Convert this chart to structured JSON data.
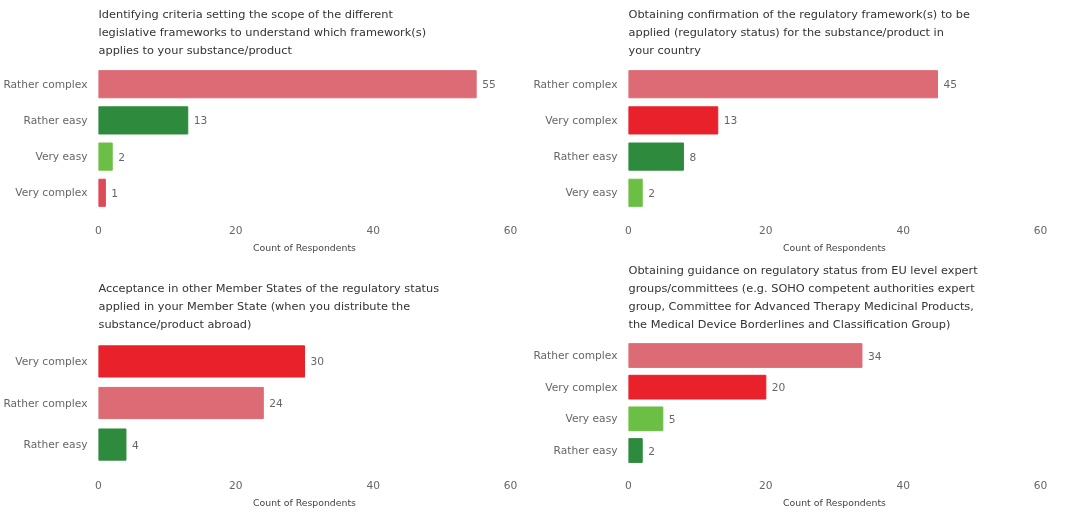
{
  "chart_data": [
    {
      "type": "bar",
      "orientation": "horizontal",
      "title": "Identifying criteria setting the scope of the different legislative frameworks to understand which framework(s) applies to your substance/product",
      "xlabel": "Count of Respondents",
      "categories": [
        "Rather complex",
        "Rather easy",
        "Very easy",
        "Very complex"
      ],
      "values": [
        55,
        13,
        2,
        1
      ],
      "colors": [
        "#dd6b75",
        "#2e8b3e",
        "#6cbf45",
        "#dd4a57"
      ],
      "xlim": [
        0,
        60
      ],
      "xticks": [
        0,
        20,
        40,
        60
      ],
      "data_labels": true
    },
    {
      "type": "bar",
      "orientation": "horizontal",
      "title": "Obtaining confirmation of the regulatory framework(s) to be applied (regulatory status) for the substance/product in your country",
      "xlabel": "Count of Respondents",
      "categories": [
        "Rather complex",
        "Very complex",
        "Rather easy",
        "Very easy"
      ],
      "values": [
        45,
        13,
        8,
        2
      ],
      "colors": [
        "#dd6b75",
        "#e8212a",
        "#2e8b3e",
        "#6cbf45"
      ],
      "xlim": [
        0,
        60
      ],
      "xticks": [
        0,
        20,
        40,
        60
      ],
      "data_labels": true
    },
    {
      "type": "bar",
      "orientation": "horizontal",
      "title": "Acceptance in other Member States of the regulatory status applied in your Member State (when you distribute the substance/product abroad)",
      "xlabel": "Count of Respondents",
      "categories": [
        "Very complex",
        "Rather complex",
        "Rather easy"
      ],
      "values": [
        30,
        24,
        4
      ],
      "colors": [
        "#e8212a",
        "#dd6b75",
        "#2e8b3e"
      ],
      "xlim": [
        0,
        60
      ],
      "xticks": [
        0,
        20,
        40,
        60
      ],
      "data_labels": true
    },
    {
      "type": "bar",
      "orientation": "horizontal",
      "title": "Obtaining guidance on regulatory status from EU level expert groups/committees (e.g. SOHO competent authorities expert group, Committee for Advanced Therapy Medicinal Products, the Medical Device Borderlines and Classification Group)",
      "xlabel": "Count of Respondents",
      "categories": [
        "Rather complex",
        "Very complex",
        "Very easy",
        "Rather easy"
      ],
      "values": [
        34,
        20,
        5,
        2
      ],
      "colors": [
        "#dd6b75",
        "#e8212a",
        "#6cbf45",
        "#2e8b3e"
      ],
      "xlim": [
        0,
        60
      ],
      "xticks": [
        0,
        20,
        40,
        60
      ],
      "data_labels": true
    }
  ]
}
